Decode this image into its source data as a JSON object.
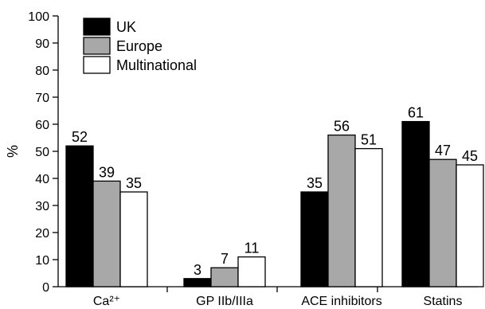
{
  "chart_data": {
    "type": "bar",
    "title": "",
    "xlabel": "",
    "ylabel": "%",
    "ylim": [
      0,
      100
    ],
    "yticks": [
      0,
      10,
      20,
      30,
      40,
      50,
      60,
      70,
      80,
      90,
      100
    ],
    "grid": false,
    "legend_position": "top-left",
    "categories": [
      "Ca²⁺",
      "GP IIb/IIIa",
      "ACE inhibitors",
      "Statins"
    ],
    "series": [
      {
        "name": "UK",
        "color": "#000000",
        "values": [
          52,
          3,
          35,
          61
        ]
      },
      {
        "name": "Europe",
        "color": "#a8a8a8",
        "values": [
          39,
          7,
          56,
          47
        ]
      },
      {
        "name": "Multinational",
        "color": "#ffffff",
        "values": [
          35,
          11,
          51,
          45
        ]
      }
    ]
  }
}
